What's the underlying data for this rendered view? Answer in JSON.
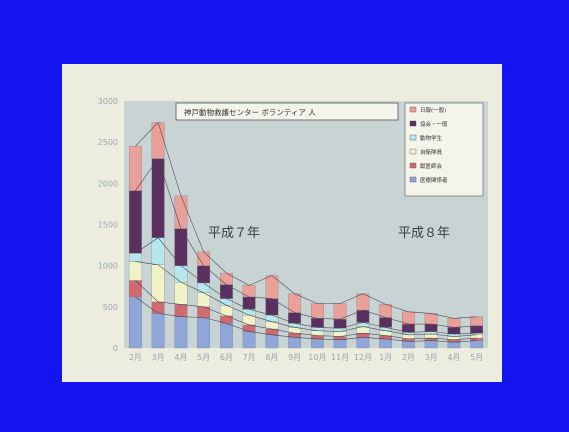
{
  "chart_data": {
    "type": "bar",
    "stacked": true,
    "title": "神戸動物救護センター ボランティア 人",
    "categories": [
      "2月",
      "3月",
      "4月",
      "5月",
      "6月",
      "7月",
      "8月",
      "9月",
      "10月",
      "11月",
      "12月",
      "1月",
      "2月",
      "3月",
      "4月",
      "5月"
    ],
    "ylim": [
      0,
      3000
    ],
    "yticks": [
      0,
      500,
      1000,
      1500,
      2000,
      2500,
      3000
    ],
    "grid": false,
    "legend_position": "top-right",
    "annotations": [
      "平成７年",
      "平成８年"
    ],
    "series": [
      {
        "name": "医療関係者",
        "color": "#8ea6d8",
        "values": [
          620,
          420,
          380,
          370,
          300,
          200,
          160,
          130,
          110,
          100,
          130,
          110,
          80,
          90,
          70,
          90
        ]
      },
      {
        "name": "獣医師会",
        "color": "#cf6a70",
        "values": [
          200,
          140,
          150,
          130,
          90,
          80,
          70,
          50,
          40,
          40,
          50,
          40,
          30,
          30,
          30,
          30
        ]
      },
      {
        "name": "自衛隊員",
        "color": "#f2f2c8",
        "values": [
          230,
          450,
          270,
          170,
          130,
          120,
          90,
          70,
          60,
          60,
          80,
          60,
          50,
          50,
          40,
          40
        ]
      },
      {
        "name": "動物学生",
        "color": "#b6e6ee",
        "values": [
          100,
          330,
          200,
          120,
          80,
          70,
          80,
          50,
          40,
          40,
          50,
          40,
          30,
          30,
          30,
          20
        ]
      },
      {
        "name": "協会・一般",
        "color": "#5a3060",
        "values": [
          760,
          960,
          450,
          210,
          170,
          150,
          200,
          130,
          110,
          110,
          150,
          120,
          100,
          90,
          80,
          90
        ]
      },
      {
        "name": "日報(一般)",
        "color": "#e8a098",
        "values": [
          540,
          440,
          400,
          170,
          140,
          140,
          280,
          230,
          180,
          190,
          200,
          160,
          150,
          130,
          110,
          110
        ]
      }
    ]
  }
}
